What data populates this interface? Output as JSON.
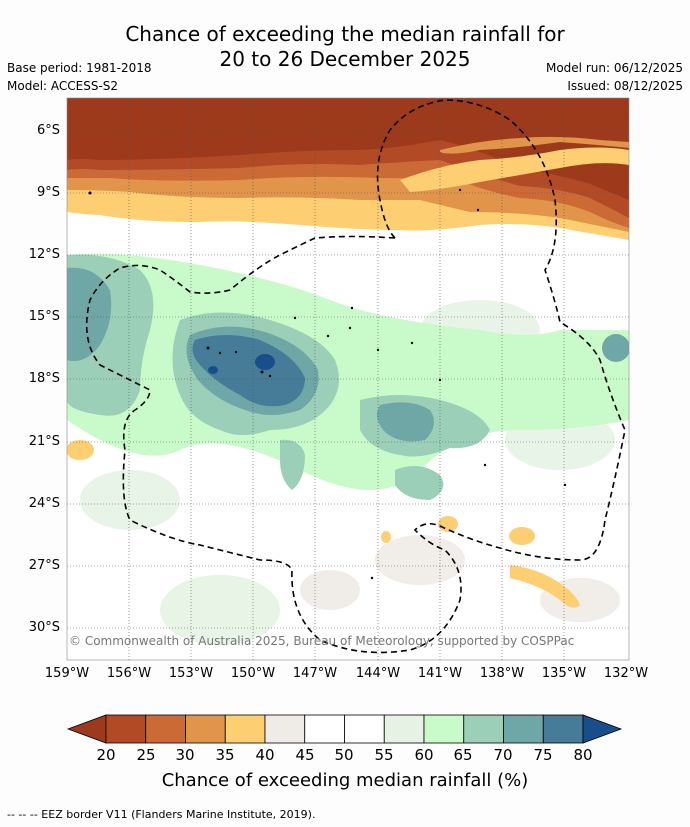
{
  "header": {
    "title_line1": "Chance of exceeding the median rainfall for",
    "title_line2": "20 to 26 December 2025",
    "base_period": "Base period: 1981-2018",
    "model": "Model: ACCESS-S2",
    "model_run": "Model run: 06/12/2025",
    "issued": "Issued: 08/12/2025"
  },
  "map": {
    "lat_labels": [
      "6°S",
      "9°S",
      "12°S",
      "15°S",
      "18°S",
      "21°S",
      "24°S",
      "27°S",
      "30°S"
    ],
    "lon_labels": [
      "159°W",
      "156°W",
      "153°W",
      "150°W",
      "147°W",
      "144°W",
      "141°W",
      "138°W",
      "135°W",
      "132°W"
    ],
    "copyright": "© Commonwealth of Australia 2025, Bureau of Meteorology, supported by COSPPac"
  },
  "colorbar": {
    "ticks": [
      "20",
      "25",
      "30",
      "35",
      "40",
      "45",
      "50",
      "55",
      "60",
      "65",
      "70",
      "75",
      "80"
    ],
    "colors": [
      "#9e3a1c",
      "#b34a26",
      "#cc6a35",
      "#e0954a",
      "#fdcf72",
      "#efebe6",
      "#ffffff",
      "#ffffff",
      "#e6f3e4",
      "#c9fac9",
      "#9bcfb7",
      "#6fa7a6",
      "#467c98",
      "#184f8a"
    ],
    "title": "Chance of exceeding median rainfall (%)"
  },
  "footer": {
    "legend": "-- -- -- EEZ border V11 (Flanders Marine Institute, 2019)."
  }
}
